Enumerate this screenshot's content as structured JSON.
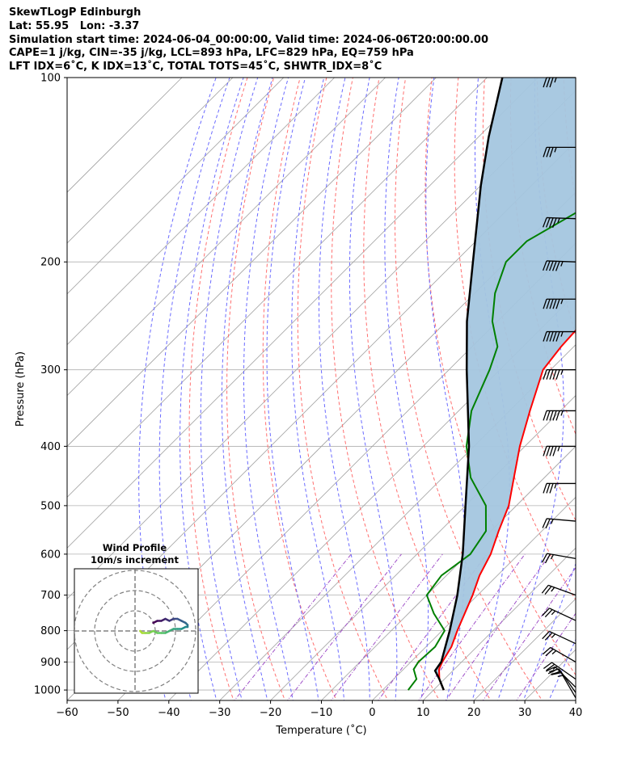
{
  "header": {
    "lines": [
      "SkewTLogP Edinburgh",
      "Lat: 55.95   Lon: -3.37",
      "Simulation start time: 2024-06-04_00:00:00, Valid time: 2024-06-06T20:00:00.00",
      "CAPE=1 j/kg, CIN=-35 j/kg, LCL=893 hPa, LFC=829 hPa, EQ=759 hPa",
      "LFT IDX=6˚C, K IDX=13˚C, TOTAL TOTS=45˚C, SHWTR_IDX=8˚C"
    ]
  },
  "chart_data": {
    "type": "skew-t log-p",
    "xlabel": "Temperature (˚C)",
    "ylabel": "Pressure (hPa)",
    "xlim": [
      -60,
      40
    ],
    "ylim": [
      1040,
      100
    ],
    "y_scale": "log",
    "x_ticks": [
      "−60",
      "−50",
      "−40",
      "−30",
      "−20",
      "−10",
      "0",
      "10",
      "20",
      "30",
      "40"
    ],
    "x_tick_values": [
      -60,
      -50,
      -40,
      -30,
      -20,
      -10,
      0,
      10,
      20,
      30,
      40
    ],
    "y_ticks": [
      1000,
      900,
      800,
      700,
      600,
      500,
      400,
      300,
      200,
      100
    ],
    "grid": true,
    "colors": {
      "temperature": "#ff0000",
      "dewpoint": "#008000",
      "parcel": "#000000",
      "cape_fill": "#a4c6df",
      "dry_adiabats": "#ff7070",
      "moist_adiabats": "#6b6bff",
      "mixing_ratio": "#a050c8",
      "isotherms": "#a0a0a0"
    },
    "temperature": [
      [
        1000,
        12.0
      ],
      [
        960,
        9.0
      ],
      [
        925,
        7.0
      ],
      [
        900,
        6.2
      ],
      [
        850,
        5.0
      ],
      [
        800,
        3.0
      ],
      [
        700,
        -1.0
      ],
      [
        650,
        -3.5
      ],
      [
        600,
        -5.5
      ],
      [
        550,
        -8.5
      ],
      [
        500,
        -11.5
      ],
      [
        450,
        -16.0
      ],
      [
        400,
        -21.0
      ],
      [
        350,
        -26.0
      ],
      [
        300,
        -31.5
      ],
      [
        275,
        -32.5
      ],
      [
        250,
        -33.0
      ],
      [
        225,
        -36.0
      ],
      [
        200,
        -40.0
      ],
      [
        175,
        -45.0
      ],
      [
        150,
        -49.0
      ],
      [
        125,
        -52.0
      ],
      [
        110,
        -54.0
      ],
      [
        100,
        -56.0
      ]
    ],
    "dewpoint": [
      [
        1000,
        5.0
      ],
      [
        960,
        4.5
      ],
      [
        925,
        2.0
      ],
      [
        900,
        1.5
      ],
      [
        850,
        1.8
      ],
      [
        800,
        0.5
      ],
      [
        750,
        -5.0
      ],
      [
        700,
        -10.0
      ],
      [
        650,
        -11.0
      ],
      [
        600,
        -9.5
      ],
      [
        550,
        -11.0
      ],
      [
        500,
        -16.0
      ],
      [
        450,
        -24.5
      ],
      [
        400,
        -31.5
      ],
      [
        350,
        -37.5
      ],
      [
        300,
        -42.0
      ],
      [
        275,
        -45.0
      ],
      [
        250,
        -51.0
      ],
      [
        225,
        -56.0
      ],
      [
        200,
        -60.0
      ],
      [
        185,
        -60.0
      ],
      [
        150,
        -52.0
      ],
      [
        125,
        -44.0
      ],
      [
        100,
        -37.0
      ]
    ],
    "parcel": [
      [
        1000,
        12.0
      ],
      [
        960,
        9.0
      ],
      [
        930,
        6.5
      ],
      [
        900,
        6.0
      ],
      [
        800,
        1.5
      ],
      [
        700,
        -4.0
      ],
      [
        600,
        -11.0
      ],
      [
        500,
        -20.0
      ],
      [
        400,
        -31.0
      ],
      [
        300,
        -46.5
      ],
      [
        250,
        -56.0
      ],
      [
        200,
        -66.5
      ],
      [
        150,
        -80.0
      ],
      [
        125,
        -88.0
      ],
      [
        100,
        -97.0
      ]
    ],
    "wind_barbs": [
      {
        "p": 100,
        "speed_kt": 35,
        "dir_deg": 270
      },
      {
        "p": 130,
        "speed_kt": 35,
        "dir_deg": 270
      },
      {
        "p": 170,
        "speed_kt": 45,
        "dir_deg": 268
      },
      {
        "p": 200,
        "speed_kt": 55,
        "dir_deg": 268
      },
      {
        "p": 230,
        "speed_kt": 55,
        "dir_deg": 270
      },
      {
        "p": 260,
        "speed_kt": 55,
        "dir_deg": 270
      },
      {
        "p": 300,
        "speed_kt": 55,
        "dir_deg": 270
      },
      {
        "p": 350,
        "speed_kt": 55,
        "dir_deg": 270
      },
      {
        "p": 400,
        "speed_kt": 45,
        "dir_deg": 270
      },
      {
        "p": 460,
        "speed_kt": 35,
        "dir_deg": 270
      },
      {
        "p": 530,
        "speed_kt": 25,
        "dir_deg": 265
      },
      {
        "p": 610,
        "speed_kt": 25,
        "dir_deg": 260
      },
      {
        "p": 700,
        "speed_kt": 25,
        "dir_deg": 250
      },
      {
        "p": 770,
        "speed_kt": 25,
        "dir_deg": 245
      },
      {
        "p": 840,
        "speed_kt": 25,
        "dir_deg": 245
      },
      {
        "p": 900,
        "speed_kt": 25,
        "dir_deg": 240
      },
      {
        "p": 960,
        "speed_kt": 25,
        "dir_deg": 235
      },
      {
        "p": 990,
        "speed_kt": 25,
        "dir_deg": 225
      },
      {
        "p": 1010,
        "speed_kt": 20,
        "dir_deg": 215
      },
      {
        "p": 1030,
        "speed_kt": 15,
        "dir_deg": 210
      }
    ],
    "hodograph": {
      "title": "Wind Profile",
      "subtitle": "10m/s increment",
      "rings_ms": [
        10,
        20,
        30
      ],
      "points_uv": [
        [
          18,
          4
        ],
        [
          22,
          5
        ],
        [
          26,
          5
        ],
        [
          30,
          6
        ],
        [
          34,
          5
        ],
        [
          38,
          6
        ],
        [
          42,
          6
        ],
        [
          46,
          5
        ],
        [
          50,
          4
        ],
        [
          52,
          3
        ],
        [
          52,
          2
        ],
        [
          50,
          2
        ],
        [
          46,
          1
        ],
        [
          42,
          1
        ],
        [
          38,
          1
        ],
        [
          34,
          0
        ],
        [
          30,
          -1
        ],
        [
          26,
          -1
        ],
        [
          22,
          -1
        ],
        [
          18,
          0
        ],
        [
          14,
          -1
        ],
        [
          10,
          -1
        ],
        [
          7,
          -1
        ],
        [
          5,
          0
        ]
      ]
    }
  }
}
